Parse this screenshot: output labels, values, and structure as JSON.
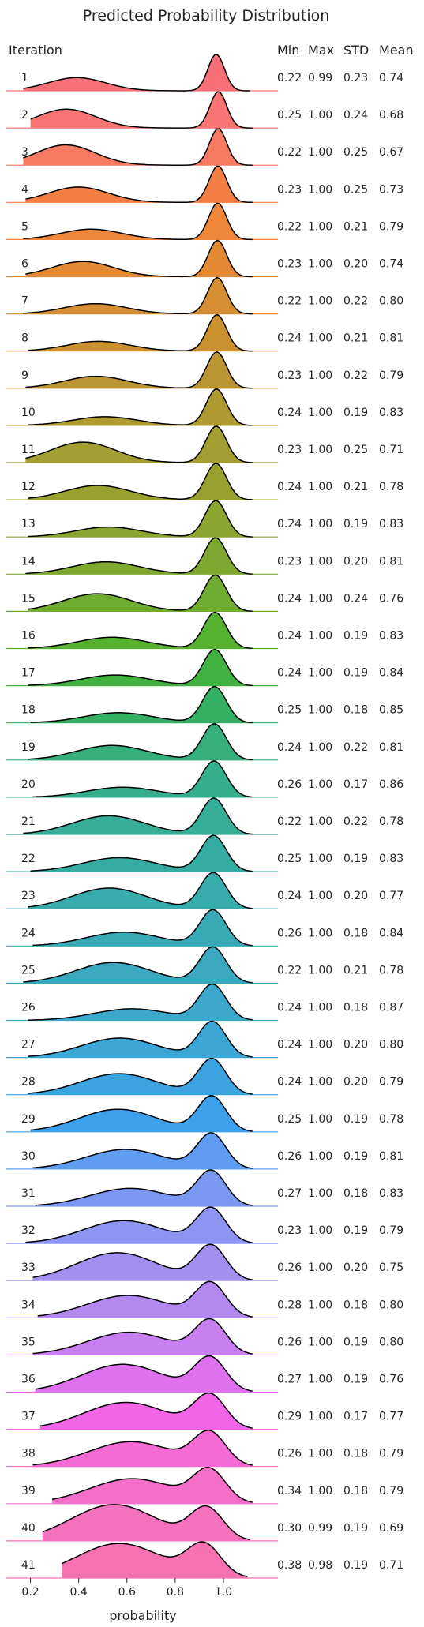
{
  "chart_data": {
    "type": "ridgeline",
    "title": "Predicted Probability Distribution",
    "xlabel": "probability",
    "row_header": "Iteration",
    "stat_headers": [
      "Min",
      "Max",
      "STD",
      "Mean"
    ],
    "x_ticks": [
      "0.2",
      "0.4",
      "0.6",
      "0.8",
      "1.0"
    ],
    "x_tick_values": [
      0.2,
      0.4,
      0.6,
      0.8,
      1.0
    ],
    "xlim": [
      0.1,
      1.18
    ],
    "grid": false,
    "rows": [
      {
        "label": "1",
        "min": "0.22",
        "max": "0.99",
        "std": "0.23",
        "mean": "0.74"
      },
      {
        "label": "2",
        "min": "0.25",
        "max": "1.00",
        "std": "0.24",
        "mean": "0.68"
      },
      {
        "label": "3",
        "min": "0.22",
        "max": "1.00",
        "std": "0.25",
        "mean": "0.67"
      },
      {
        "label": "4",
        "min": "0.23",
        "max": "1.00",
        "std": "0.25",
        "mean": "0.73"
      },
      {
        "label": "5",
        "min": "0.22",
        "max": "1.00",
        "std": "0.21",
        "mean": "0.79"
      },
      {
        "label": "6",
        "min": "0.23",
        "max": "1.00",
        "std": "0.20",
        "mean": "0.74"
      },
      {
        "label": "7",
        "min": "0.22",
        "max": "1.00",
        "std": "0.22",
        "mean": "0.80"
      },
      {
        "label": "8",
        "min": "0.24",
        "max": "1.00",
        "std": "0.21",
        "mean": "0.81"
      },
      {
        "label": "9",
        "min": "0.23",
        "max": "1.00",
        "std": "0.22",
        "mean": "0.79"
      },
      {
        "label": "10",
        "min": "0.24",
        "max": "1.00",
        "std": "0.19",
        "mean": "0.83"
      },
      {
        "label": "11",
        "min": "0.23",
        "max": "1.00",
        "std": "0.25",
        "mean": "0.71"
      },
      {
        "label": "12",
        "min": "0.24",
        "max": "1.00",
        "std": "0.21",
        "mean": "0.78"
      },
      {
        "label": "13",
        "min": "0.24",
        "max": "1.00",
        "std": "0.19",
        "mean": "0.83"
      },
      {
        "label": "14",
        "min": "0.23",
        "max": "1.00",
        "std": "0.20",
        "mean": "0.81"
      },
      {
        "label": "15",
        "min": "0.24",
        "max": "1.00",
        "std": "0.24",
        "mean": "0.76"
      },
      {
        "label": "16",
        "min": "0.24",
        "max": "1.00",
        "std": "0.19",
        "mean": "0.83"
      },
      {
        "label": "17",
        "min": "0.24",
        "max": "1.00",
        "std": "0.19",
        "mean": "0.84"
      },
      {
        "label": "18",
        "min": "0.25",
        "max": "1.00",
        "std": "0.18",
        "mean": "0.85"
      },
      {
        "label": "19",
        "min": "0.24",
        "max": "1.00",
        "std": "0.22",
        "mean": "0.81"
      },
      {
        "label": "20",
        "min": "0.26",
        "max": "1.00",
        "std": "0.17",
        "mean": "0.86"
      },
      {
        "label": "21",
        "min": "0.22",
        "max": "1.00",
        "std": "0.22",
        "mean": "0.78"
      },
      {
        "label": "22",
        "min": "0.25",
        "max": "1.00",
        "std": "0.19",
        "mean": "0.83"
      },
      {
        "label": "23",
        "min": "0.24",
        "max": "1.00",
        "std": "0.20",
        "mean": "0.77"
      },
      {
        "label": "24",
        "min": "0.26",
        "max": "1.00",
        "std": "0.18",
        "mean": "0.84"
      },
      {
        "label": "25",
        "min": "0.22",
        "max": "1.00",
        "std": "0.21",
        "mean": "0.78"
      },
      {
        "label": "26",
        "min": "0.24",
        "max": "1.00",
        "std": "0.18",
        "mean": "0.87"
      },
      {
        "label": "27",
        "min": "0.24",
        "max": "1.00",
        "std": "0.20",
        "mean": "0.80"
      },
      {
        "label": "28",
        "min": "0.24",
        "max": "1.00",
        "std": "0.20",
        "mean": "0.79"
      },
      {
        "label": "29",
        "min": "0.25",
        "max": "1.00",
        "std": "0.19",
        "mean": "0.78"
      },
      {
        "label": "30",
        "min": "0.26",
        "max": "1.00",
        "std": "0.19",
        "mean": "0.81"
      },
      {
        "label": "31",
        "min": "0.27",
        "max": "1.00",
        "std": "0.18",
        "mean": "0.83"
      },
      {
        "label": "32",
        "min": "0.23",
        "max": "1.00",
        "std": "0.19",
        "mean": "0.79"
      },
      {
        "label": "33",
        "min": "0.26",
        "max": "1.00",
        "std": "0.20",
        "mean": "0.75"
      },
      {
        "label": "34",
        "min": "0.28",
        "max": "1.00",
        "std": "0.18",
        "mean": "0.80"
      },
      {
        "label": "35",
        "min": "0.26",
        "max": "1.00",
        "std": "0.19",
        "mean": "0.80"
      },
      {
        "label": "36",
        "min": "0.27",
        "max": "1.00",
        "std": "0.19",
        "mean": "0.76"
      },
      {
        "label": "37",
        "min": "0.29",
        "max": "1.00",
        "std": "0.17",
        "mean": "0.77"
      },
      {
        "label": "38",
        "min": "0.26",
        "max": "1.00",
        "std": "0.18",
        "mean": "0.79"
      },
      {
        "label": "39",
        "min": "0.34",
        "max": "1.00",
        "std": "0.18",
        "mean": "0.79"
      },
      {
        "label": "40",
        "min": "0.30",
        "max": "0.99",
        "std": "0.19",
        "mean": "0.69"
      },
      {
        "label": "41",
        "min": "0.38",
        "max": "0.98",
        "std": "0.19",
        "mean": "0.71"
      }
    ],
    "colors": [
      "#f87077",
      "#f87573",
      "#f77a62",
      "#f47f45",
      "#ef8638",
      "#e38a33",
      "#d68f33",
      "#c9922f",
      "#bb9531",
      "#af9a31",
      "#a39e31",
      "#98a12d",
      "#8ca52f",
      "#7fa830",
      "#6fac31",
      "#56b131",
      "#41b13f",
      "#33b062",
      "#35af7c",
      "#35ae8b",
      "#35ad97",
      "#35aca2",
      "#37acad",
      "#38aab6",
      "#3aa9c0",
      "#3ca8cb",
      "#3ca6d4",
      "#3ba3df",
      "#3da0eb",
      "#5f9cf2",
      "#7a98f1",
      "#8e94f1",
      "#a28ff0",
      "#b389f0",
      "#c87ff0",
      "#df71ef",
      "#f264e8",
      "#f46bd6",
      "#f56ec8",
      "#f570bd",
      "#f672b1"
    ]
  }
}
